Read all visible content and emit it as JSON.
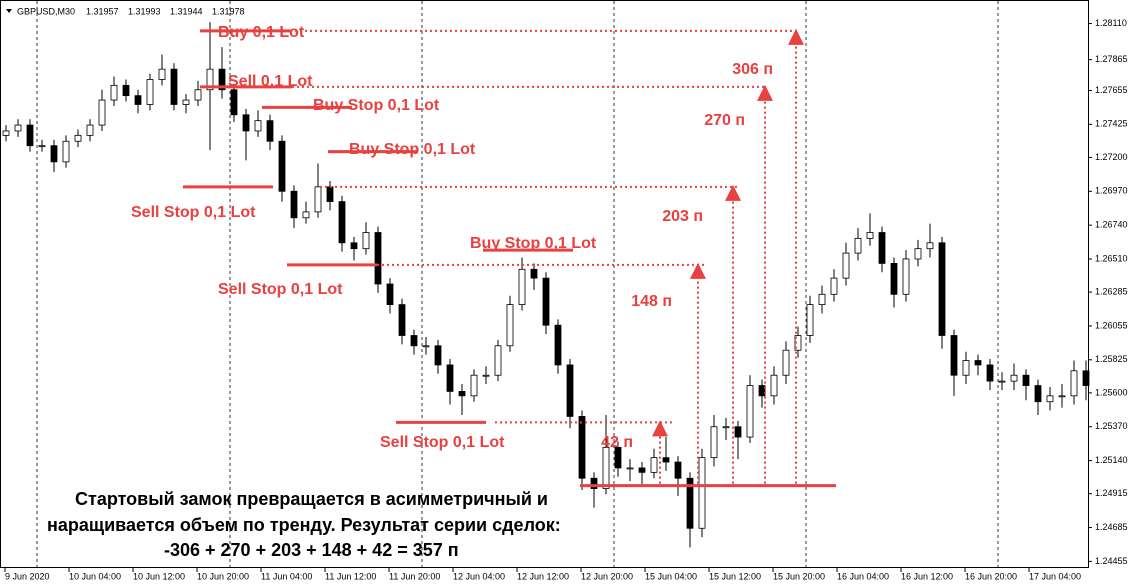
{
  "chart_data": {
    "type": "candlestick",
    "symbol": "GBPUSD,M30",
    "quote": [
      1.31957,
      1.31993,
      1.31944,
      1.31978
    ],
    "ylim": [
      1.2441,
      1.2827
    ],
    "yticks": [
      {
        "value": 1.2811,
        "label": "1.28110"
      },
      1.27865,
      1.27655,
      1.27425,
      {
        "value": 1.272,
        "label": "1.27200"
      },
      {
        "value": 1.2697,
        "label": "1.26970"
      },
      {
        "value": 1.2674,
        "label": "1.26740"
      },
      {
        "value": 1.2651,
        "label": "1.26510"
      },
      1.26285,
      1.26055,
      1.25825,
      {
        "value": 1.256,
        "label": "1.25600"
      },
      {
        "value": 1.2537,
        "label": "1.25370"
      },
      {
        "value": 1.2514,
        "label": "1.25140"
      },
      1.24915,
      1.24685,
      1.24455
    ],
    "x_labels": [
      "9 Jun 2020",
      "10 Jun 04:00",
      "10 Jun 12:00",
      "10 Jun 20:00",
      "11 Jun 04:00",
      "11 Jun 12:00",
      "11 Jun 20:00",
      "12 Jun 04:00",
      "12 Jun 12:00",
      "12 Jun 20:00",
      "15 Jun 04:00",
      "15 Jun 12:00",
      "15 Jun 20:00",
      "16 Jun 04:00",
      "16 Jun 12:00",
      "16 Jun 20:00",
      "17 Jun 04:00"
    ],
    "open": [
      1.2735,
      1.2738,
      1.2742,
      1.2728,
      1.2728,
      1.2717,
      1.2731,
      1.2735,
      1.2742,
      1.2759,
      1.2769,
      1.2762,
      1.2756,
      1.2773,
      1.278,
      1.2756,
      1.2759,
      1.2766,
      1.278,
      1.2766,
      1.2749,
      1.2738,
      1.2745,
      1.2731,
      1.2697,
      1.2679,
      1.2683,
      1.27,
      1.269,
      1.2662,
      1.2658,
      1.2669,
      1.2634,
      1.262,
      1.2599,
      1.2592,
      1.2592,
      1.2579,
      1.2561,
      1.2558,
      1.2572,
      1.2572,
      1.2592,
      1.262,
      1.2644,
      1.2638,
      1.2606,
      1.2579,
      1.2544,
      1.2502,
      1.2495,
      1.2523,
      1.2509,
      1.2509,
      1.2506,
      1.2516,
      1.2513,
      1.2502,
      1.2468,
      1.2516,
      1.2537,
      1.2537,
      1.253,
      1.2565,
      1.2558,
      1.2572,
      1.2589,
      1.2599,
      1.262,
      1.2627,
      1.2638,
      1.2655,
      1.2665,
      1.2669,
      1.2648,
      1.2627,
      1.2651,
      1.2658,
      1.2662,
      1.2599,
      1.2572,
      1.2582,
      1.2579,
      1.2568,
      1.2568,
      1.2572,
      1.2565,
      1.2554,
      1.2558,
      1.2558,
      1.2575
    ],
    "high": [
      1.2742,
      1.2746,
      1.2746,
      1.2732,
      1.2732,
      1.2735,
      1.2739,
      1.2746,
      1.2766,
      1.2775,
      1.2773,
      1.2766,
      1.2777,
      1.279,
      1.2784,
      1.2763,
      1.2772,
      1.2812,
      1.2795,
      1.277,
      1.2753,
      1.2752,
      1.2749,
      1.2735,
      1.2701,
      1.269,
      1.2716,
      1.2704,
      1.2694,
      1.2666,
      1.2676,
      1.2673,
      1.2638,
      1.2624,
      1.2603,
      1.2598,
      1.2596,
      1.2583,
      1.2566,
      1.2576,
      1.2578,
      1.2596,
      1.2626,
      1.2652,
      1.2648,
      1.2642,
      1.261,
      1.2583,
      1.2548,
      1.2506,
      1.2545,
      1.2527,
      1.2515,
      1.2513,
      1.2522,
      1.253,
      1.2517,
      1.2506,
      1.2522,
      1.2545,
      1.2543,
      1.2541,
      1.2572,
      1.2569,
      1.2578,
      1.2595,
      1.2605,
      1.2626,
      1.2633,
      1.2644,
      1.2662,
      1.2672,
      1.2682,
      1.2673,
      1.2652,
      1.2657,
      1.2664,
      1.2675,
      1.2666,
      1.2603,
      1.2588,
      1.2586,
      1.2583,
      1.2574,
      1.258,
      1.2576,
      1.2569,
      1.2564,
      1.2566,
      1.2582,
      1.2582
    ],
    "low": [
      1.2731,
      1.2734,
      1.2724,
      1.2724,
      1.271,
      1.2713,
      1.2727,
      1.2731,
      1.2738,
      1.2755,
      1.2758,
      1.275,
      1.2752,
      1.2769,
      1.2752,
      1.275,
      1.2755,
      1.2725,
      1.276,
      1.2744,
      1.2718,
      1.2734,
      1.2725,
      1.269,
      1.2672,
      1.2675,
      1.2679,
      1.2684,
      1.2656,
      1.265,
      1.2654,
      1.2628,
      1.2614,
      1.2593,
      1.2586,
      1.2586,
      1.2573,
      1.2552,
      1.2545,
      1.2554,
      1.2566,
      1.2568,
      1.2588,
      1.2616,
      1.263,
      1.26,
      1.2573,
      1.2536,
      1.2494,
      1.2482,
      1.2491,
      1.2503,
      1.25,
      1.2498,
      1.2502,
      1.2507,
      1.249,
      1.2455,
      1.2462,
      1.251,
      1.2528,
      1.2515,
      1.2526,
      1.255,
      1.2552,
      1.2566,
      1.2584,
      1.2594,
      1.2614,
      1.2622,
      1.2633,
      1.265,
      1.266,
      1.2642,
      1.2618,
      1.2622,
      1.2646,
      1.2652,
      1.259,
      1.2558,
      1.2566,
      1.2572,
      1.2562,
      1.2562,
      1.2562,
      1.2555,
      1.2545,
      1.2548,
      1.255,
      1.2552,
      1.2555
    ],
    "close": [
      1.2738,
      1.2742,
      1.2728,
      1.2728,
      1.2717,
      1.2731,
      1.2735,
      1.2742,
      1.2759,
      1.2769,
      1.2762,
      1.2756,
      1.2773,
      1.278,
      1.2756,
      1.2759,
      1.2766,
      1.278,
      1.2766,
      1.2749,
      1.2738,
      1.2745,
      1.2731,
      1.2697,
      1.2679,
      1.2683,
      1.27,
      1.269,
      1.2662,
      1.2658,
      1.2669,
      1.2634,
      1.262,
      1.2599,
      1.2592,
      1.2592,
      1.2579,
      1.2561,
      1.2558,
      1.2572,
      1.2572,
      1.2592,
      1.262,
      1.2644,
      1.2638,
      1.2606,
      1.2579,
      1.2544,
      1.2502,
      1.2495,
      1.2523,
      1.2509,
      1.2509,
      1.2506,
      1.2516,
      1.2513,
      1.2502,
      1.2468,
      1.2516,
      1.2537,
      1.2537,
      1.253,
      1.2565,
      1.2558,
      1.2572,
      1.2589,
      1.2599,
      1.262,
      1.2627,
      1.2638,
      1.2655,
      1.2665,
      1.2669,
      1.2648,
      1.2627,
      1.2651,
      1.2658,
      1.2662,
      1.2599,
      1.2572,
      1.2582,
      1.2579,
      1.2568,
      1.2568,
      1.2572,
      1.2565,
      1.2554,
      1.2558,
      1.2558,
      1.2575,
      1.2565
    ],
    "levels": [
      {
        "label": "Buy 0,1 Lot",
        "price": 1.2806
      },
      {
        "label": "Sell 0,1 Lot",
        "price": 1.2768
      },
      {
        "label": "Buy Stop 0,1 Lot",
        "price": 1.2754
      },
      {
        "label": "Buy Stop 0,1 Lot",
        "price": 1.2724
      },
      {
        "label": "Sell Stop 0,1 Lot",
        "price": 1.27
      },
      {
        "label": "Buy Stop 0,1 Lot",
        "price": 1.2657
      },
      {
        "label": "Sell Stop 0,1 Lot",
        "price": 1.2647
      },
      {
        "label": "Sell Stop 0,1 Lot",
        "price": 1.254
      }
    ],
    "base_level": 1.2497,
    "measures": [
      "306 п",
      "270 п",
      "203 п",
      "148 п",
      "42 п"
    ],
    "note": [
      "Стартовый замок превращается в асимметричный и",
      "наращивается объем по тренду. Результат серии сделок:",
      "-306 + 270 + 203 + 148 + 42 = 357 п"
    ]
  }
}
